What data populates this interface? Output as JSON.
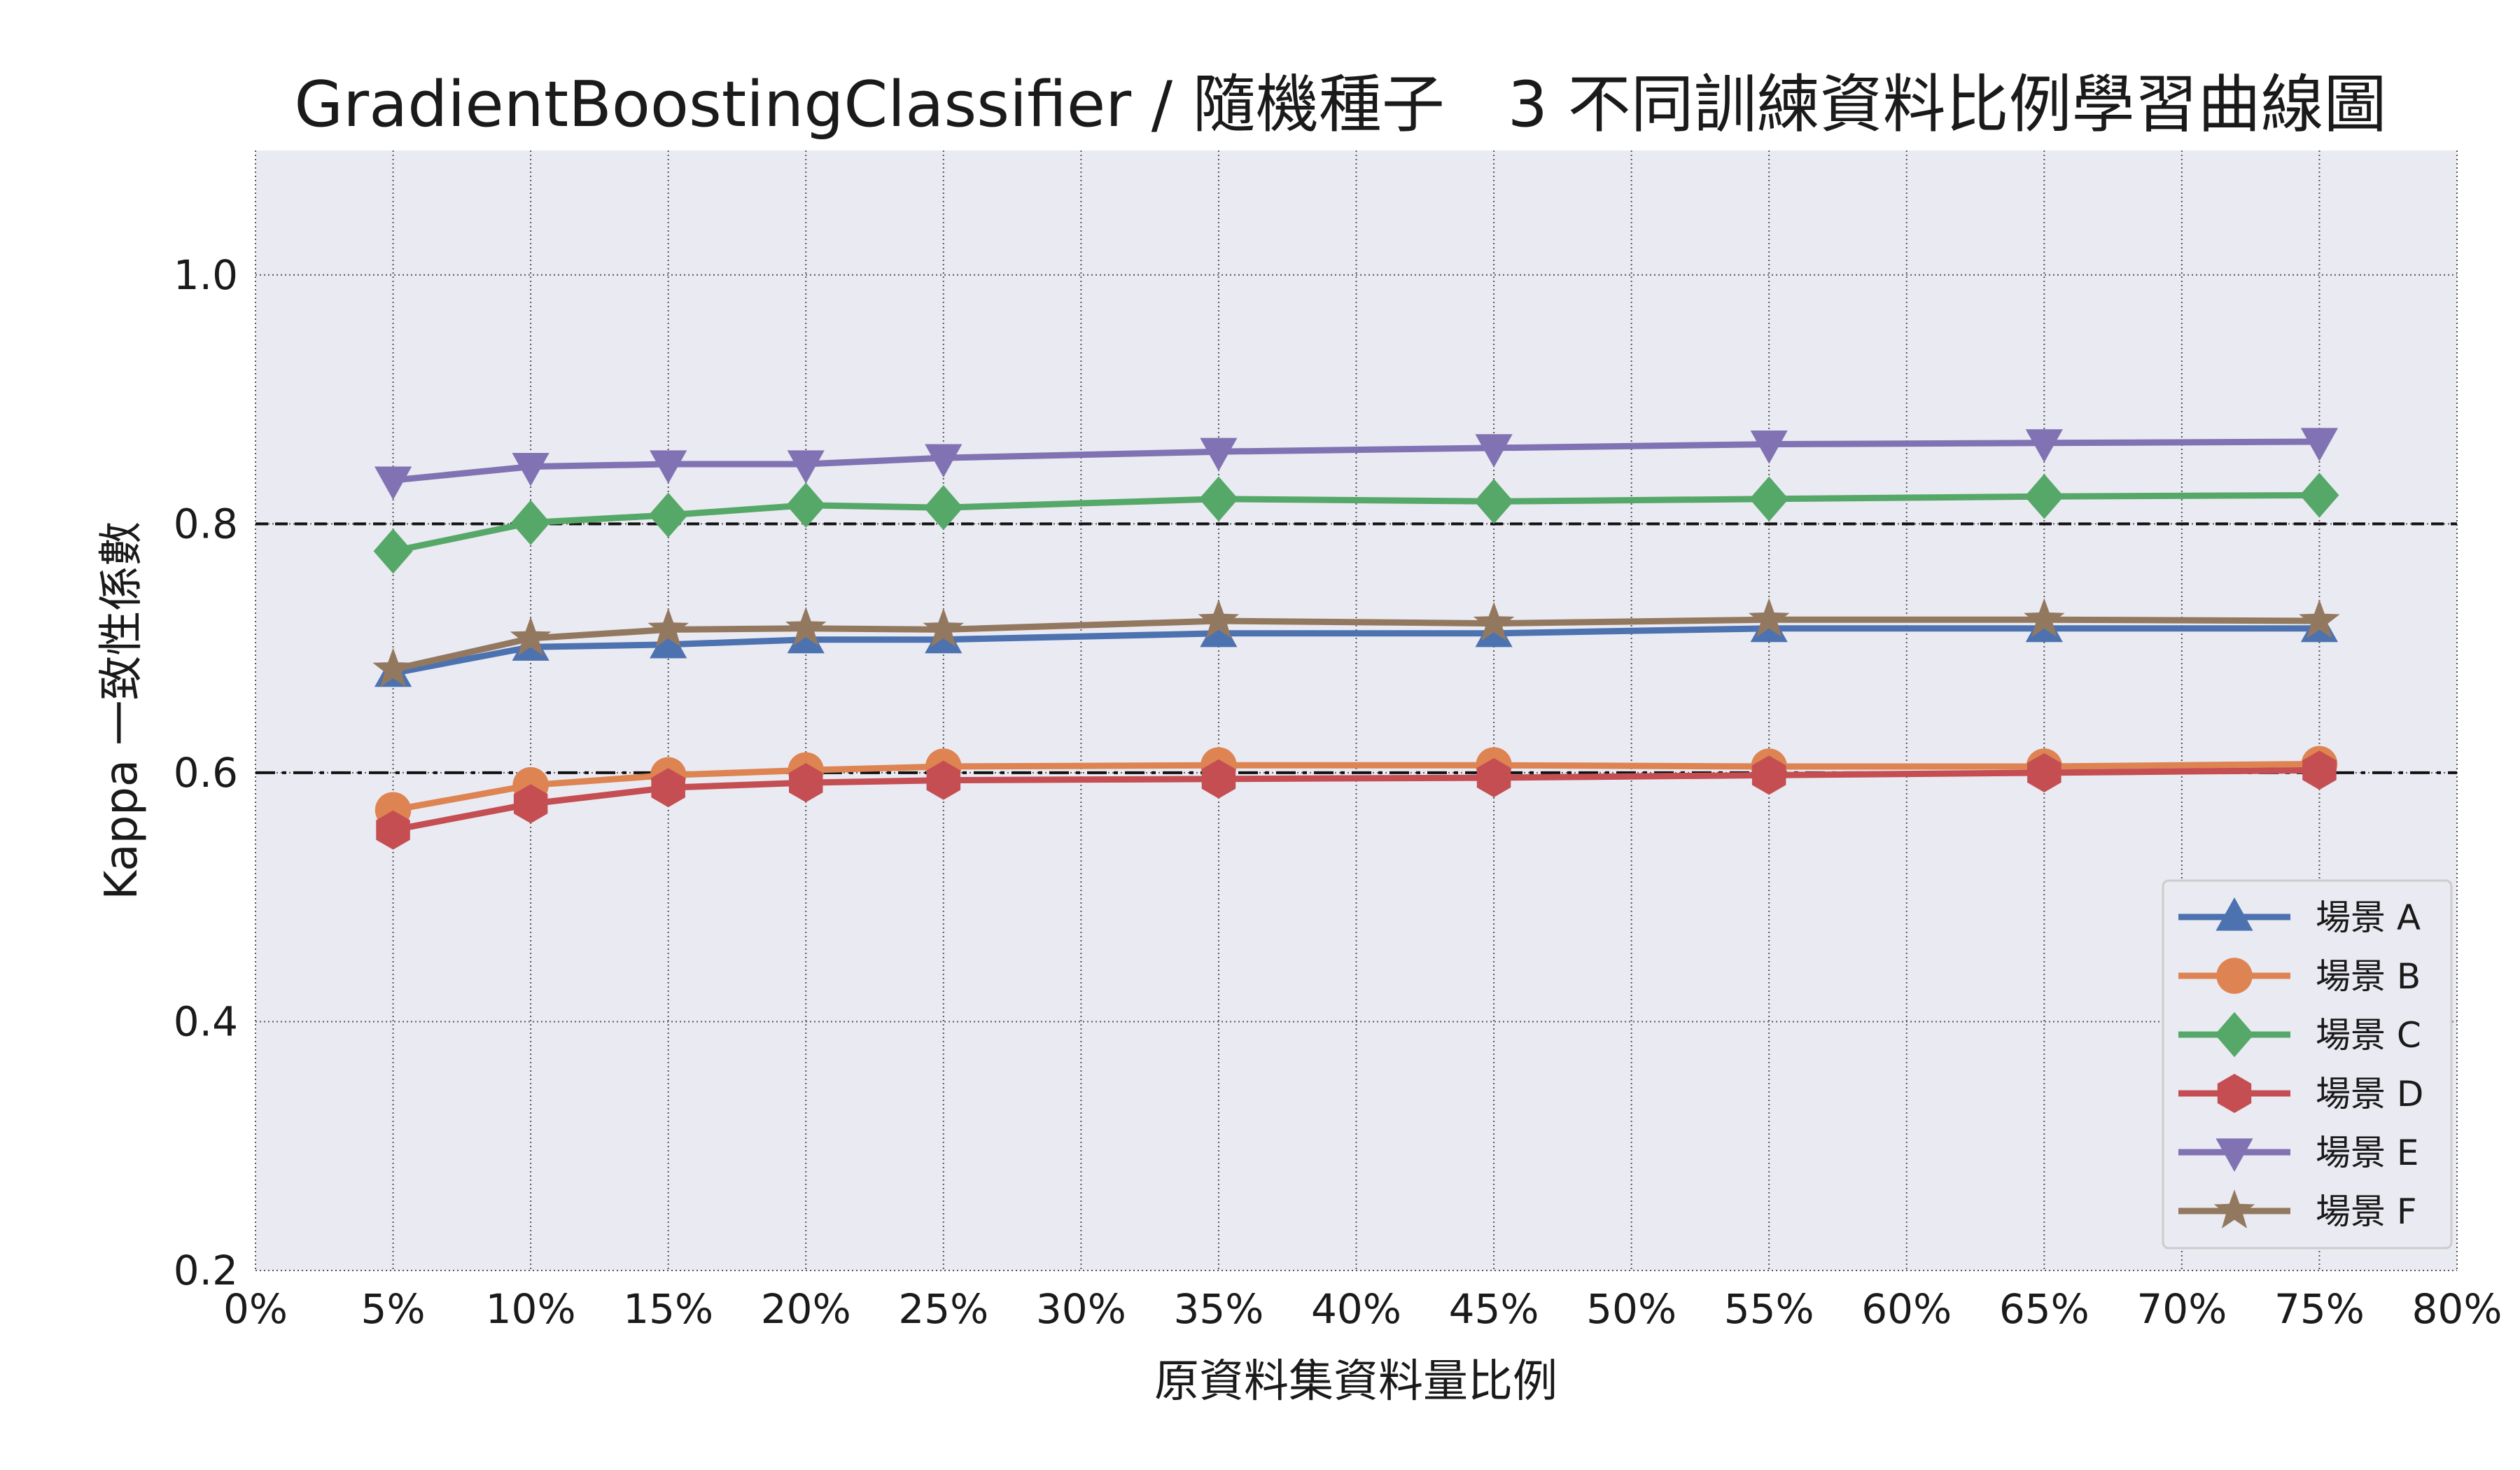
{
  "chart_data": {
    "type": "line",
    "title": "GradientBoostingClassifier / 隨機種子　3 不同訓練資料比例學習曲線圖",
    "xlabel": "原資料集資料量比例",
    "ylabel": "Kappa 一致性係數",
    "x_ticks": [
      "0%",
      "5%",
      "10%",
      "15%",
      "20%",
      "25%",
      "30%",
      "35%",
      "40%",
      "45%",
      "50%",
      "55%",
      "60%",
      "65%",
      "70%",
      "75%",
      "80%"
    ],
    "y_ticks": [
      "0.2",
      "0.4",
      "0.6",
      "0.8",
      "1.0"
    ],
    "xlim": [
      0,
      80
    ],
    "ylim": [
      0.2,
      1.1
    ],
    "grid": true,
    "legend_position": "lower-right",
    "reference_lines": [
      {
        "y": 0.8,
        "style": "dashed"
      },
      {
        "y": 0.6,
        "style": "dashdot"
      }
    ],
    "x": [
      5,
      10,
      15,
      20,
      25,
      35,
      45,
      55,
      65,
      75
    ],
    "series": [
      {
        "name": "場景 A",
        "color": "#4c72b0",
        "marker": "triangle-up",
        "values": [
          0.68,
          0.701,
          0.703,
          0.707,
          0.707,
          0.712,
          0.712,
          0.716,
          0.716,
          0.716
        ]
      },
      {
        "name": "場景 B",
        "color": "#dd8452",
        "marker": "circle",
        "values": [
          0.57,
          0.59,
          0.598,
          0.602,
          0.605,
          0.606,
          0.606,
          0.605,
          0.605,
          0.607
        ]
      },
      {
        "name": "場景 C",
        "color": "#55a868",
        "marker": "diamond",
        "values": [
          0.778,
          0.801,
          0.807,
          0.815,
          0.813,
          0.82,
          0.818,
          0.82,
          0.822,
          0.823
        ]
      },
      {
        "name": "場景 D",
        "color": "#c44e52",
        "marker": "hexagon",
        "values": [
          0.554,
          0.575,
          0.588,
          0.592,
          0.594,
          0.595,
          0.596,
          0.598,
          0.6,
          0.602
        ]
      },
      {
        "name": "場景 E",
        "color": "#8172b3",
        "marker": "triangle-down",
        "values": [
          0.835,
          0.846,
          0.848,
          0.848,
          0.853,
          0.858,
          0.861,
          0.864,
          0.865,
          0.866
        ]
      },
      {
        "name": "場景 F",
        "color": "#937860",
        "marker": "star",
        "values": [
          0.683,
          0.708,
          0.715,
          0.716,
          0.715,
          0.722,
          0.72,
          0.723,
          0.723,
          0.722
        ]
      }
    ]
  }
}
